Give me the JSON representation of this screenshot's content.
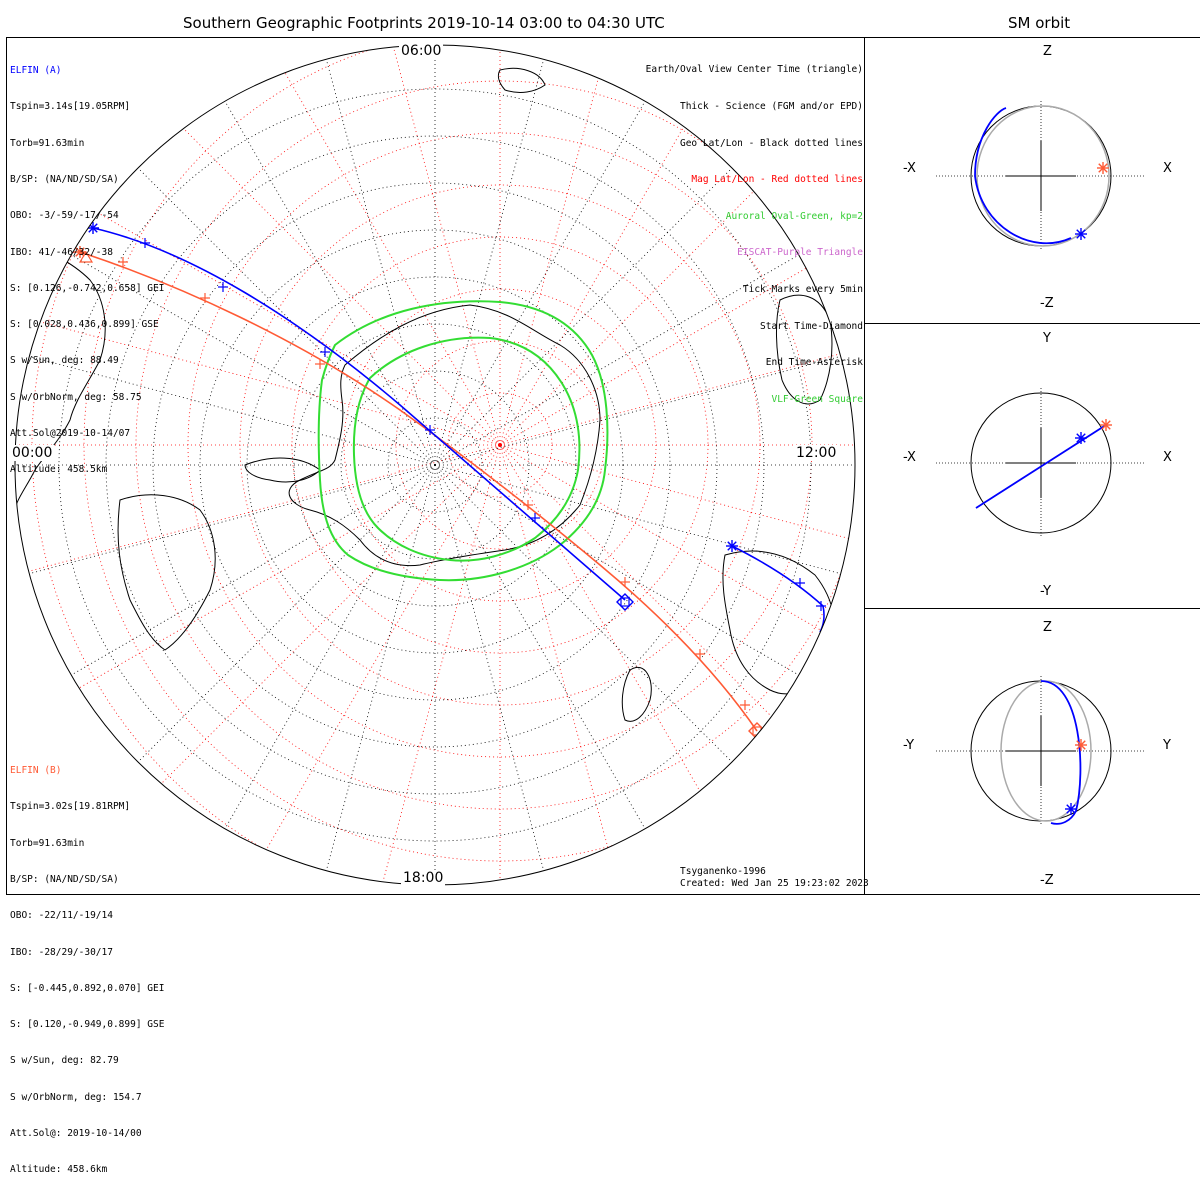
{
  "header": {
    "title": "Southern Geographic Footprints 2019-10-14 03:00 to 04:30 UTC",
    "orbit_title": "SM orbit"
  },
  "elfin_a": {
    "name": "ELFIN (A)",
    "color": "#0000ff",
    "lines": [
      "Tspin=3.14s[19.05RPM]",
      "Torb=91.63min",
      "B/SP: (NA/ND/SD/SA)",
      "OBO: -3/-59/-17/-54",
      "IBO: 41/-46/32/-38",
      "S: [0.126,-0.742,0.658] GEI",
      "S: [0.028,0.436,0.899] GSE",
      "S w/Sun, deg: 88.49",
      "S w/OrbNorm, deg: 58.75",
      "Att.Sol@2019-10-14/07",
      "Altitude: 458.5km"
    ]
  },
  "elfin_b": {
    "name": "ELFIN (B)",
    "color": "#ff5a35",
    "lines": [
      "Tspin=3.02s[19.81RPM]",
      "Torb=91.63min",
      "B/SP: (NA/ND/SD/SA)",
      "OBO: -22/11/-19/14",
      "IBO: -28/29/-30/17",
      "S: [-0.445,0.892,0.070] GEI",
      "S: [0.120,-0.949,0.899] GSE",
      "S w/Sun, deg: 82.79",
      "S w/OrbNorm, deg: 154.7",
      "Att.Sol@: 2019-10-14/00",
      "Altitude: 458.6km"
    ]
  },
  "legend": [
    {
      "text": "Earth/Oval View Center Time (triangle)",
      "color": "#000000"
    },
    {
      "text": "Thick - Science (FGM and/or EPD)",
      "color": "#000000"
    },
    {
      "text": "Geo Lat/Lon - Black dotted lines",
      "color": "#000000"
    },
    {
      "text": "Mag Lat/Lon - Red dotted lines",
      "color": "#ff0000"
    },
    {
      "text": "Auroral Oval-Green, kp=2",
      "color": "#33cc33"
    },
    {
      "text": "EISCAT-Purple Triangle",
      "color": "#cc66cc"
    },
    {
      "text": "Tick Marks every 5min",
      "color": "#000000"
    },
    {
      "text": "Start Time-Diamond",
      "color": "#000000"
    },
    {
      "text": "End Time-Asterisk",
      "color": "#000000"
    },
    {
      "text": "VLF-Green Square",
      "color": "#33cc33"
    }
  ],
  "map": {
    "hour_labels": {
      "top": "06:00",
      "left": "00:00",
      "right": "12:00",
      "bottom": "18:00"
    },
    "model": "Tsyganenko-1996",
    "created": "Created: Wed Jan 25 19:23:02 2023",
    "colors": {
      "geo_grid": "#000000",
      "mag_grid": "#ff0000",
      "oval": "#33dd33"
    }
  },
  "orbit_panels": [
    {
      "top": "Z",
      "bottom": "-Z",
      "left": "-X",
      "right": "X"
    },
    {
      "top": "Y",
      "bottom": "-Y",
      "left": "-X",
      "right": "X"
    },
    {
      "top": "Z",
      "bottom": "-Z",
      "left": "-Y",
      "right": "Y"
    }
  ]
}
